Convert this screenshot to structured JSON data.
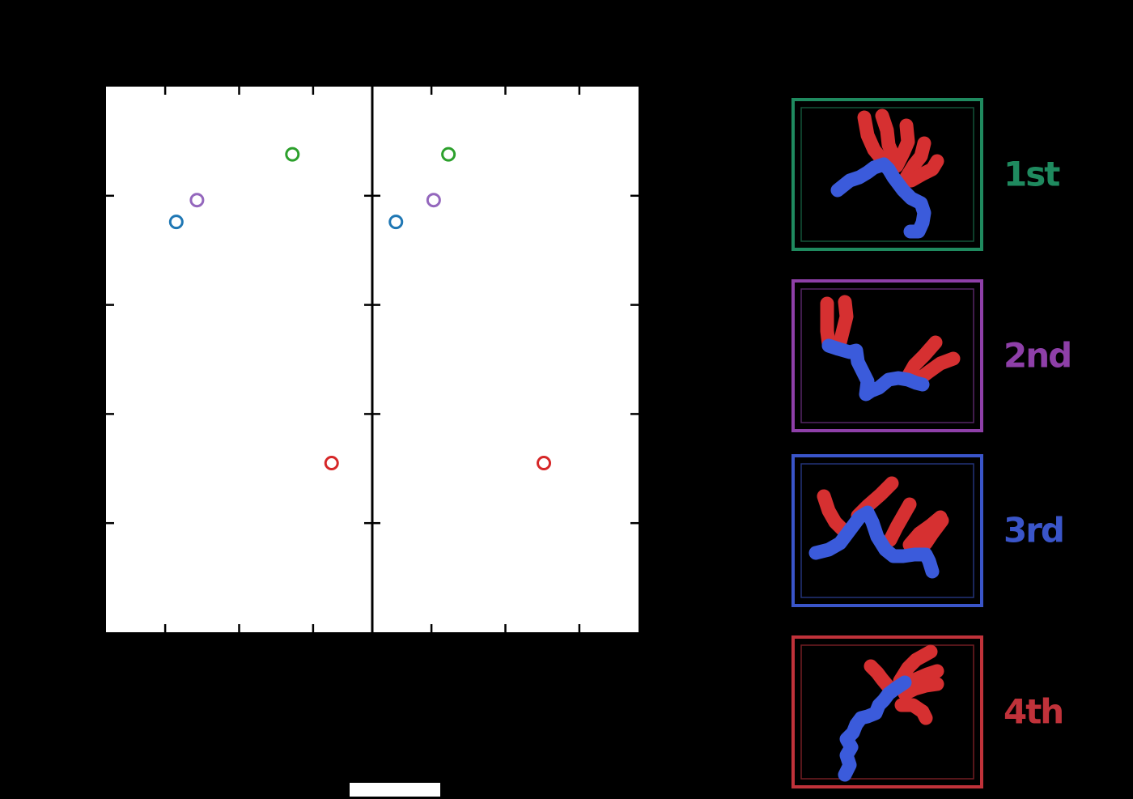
{
  "chart_data": [
    {
      "type": "scatter",
      "title": "",
      "xlabel": "",
      "ylabel": "",
      "xlim": [
        0,
        3.6
      ],
      "ylim": [
        0,
        5
      ],
      "xticks": [
        0.8,
        1.8,
        2.8
      ],
      "yticks": [
        1,
        2,
        3,
        4
      ],
      "grid": false,
      "points": [
        {
          "x": 0.95,
          "y": 3.76,
          "color": "#1f77b4"
        },
        {
          "x": 1.23,
          "y": 3.96,
          "color": "#9467bd"
        },
        {
          "x": 2.52,
          "y": 4.38,
          "color": "#2ca02c"
        },
        {
          "x": 3.05,
          "y": 1.55,
          "color": "#d62728"
        }
      ]
    },
    {
      "type": "scatter",
      "title": "",
      "xlabel": "",
      "ylabel": "",
      "xlim": [
        0,
        3.6
      ],
      "ylim": [
        0,
        5
      ],
      "xticks": [
        0.8,
        1.8,
        2.8
      ],
      "yticks": [
        1,
        2,
        3,
        4
      ],
      "grid": false,
      "points": [
        {
          "x": 0.32,
          "y": 3.76,
          "color": "#1f77b4"
        },
        {
          "x": 0.83,
          "y": 3.96,
          "color": "#9467bd"
        },
        {
          "x": 1.03,
          "y": 4.38,
          "color": "#2ca02c"
        },
        {
          "x": 2.32,
          "y": 1.55,
          "color": "#d62728"
        }
      ]
    }
  ],
  "structures": [
    {
      "label": "1st",
      "color": "#1f8a5f",
      "icon": "molecule-structure-1"
    },
    {
      "label": "2nd",
      "color": "#8e3fa8",
      "icon": "molecule-structure-2"
    },
    {
      "label": "3rd",
      "color": "#3a55c9",
      "icon": "molecule-structure-3"
    },
    {
      "label": "4th",
      "color": "#c0323a",
      "icon": "molecule-structure-4"
    }
  ],
  "colors": {
    "background": "#000000",
    "panel": "#ffffff",
    "backbone": "#3b5bdb",
    "side_chain": "#d63031"
  }
}
